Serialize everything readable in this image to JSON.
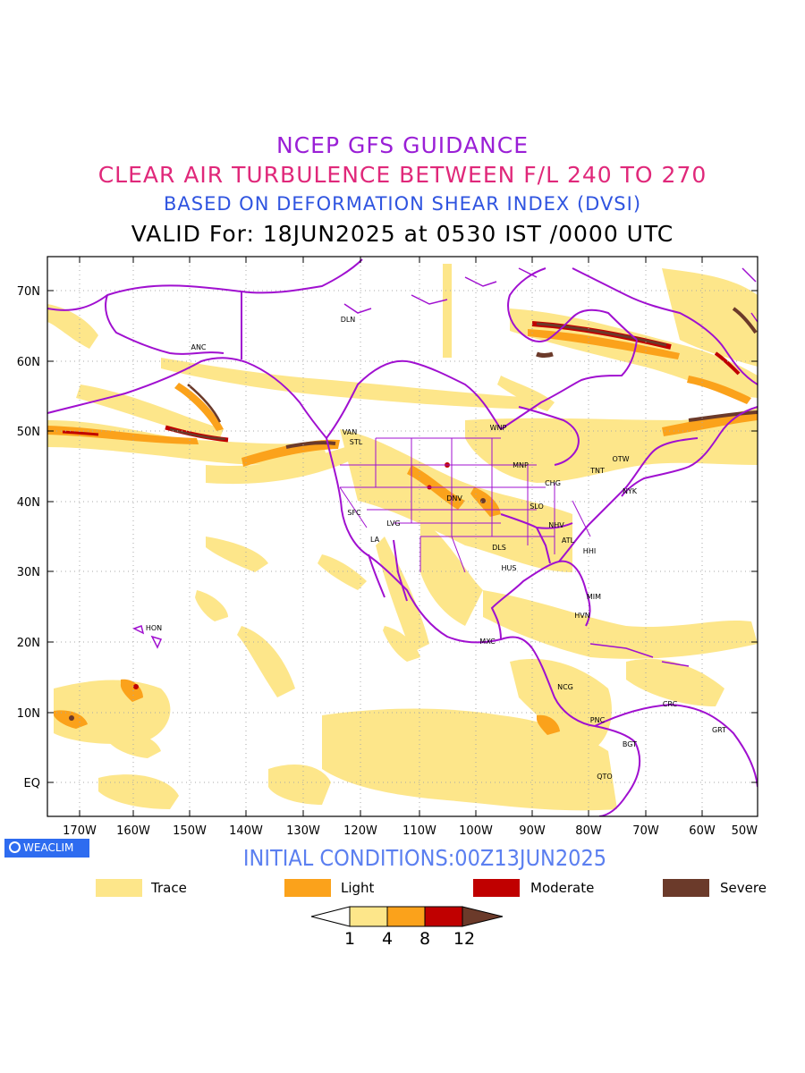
{
  "titles": {
    "line1": "NCEP GFS GUIDANCE",
    "line2": "CLEAR AIR TURBULENCE BETWEEN F/L 240 TO 270",
    "line3": "BASED ON DEFORMATION SHEAR INDEX (DVSI)",
    "line4": "VALID For: 18JUN2025 at 0530 IST /0000 UTC"
  },
  "initial_conditions": "INITIAL CONDITIONS:00Z13JUN2025",
  "badge": "WEACLIM",
  "map": {
    "lat_labels": [
      "70N",
      "60N",
      "50N",
      "40N",
      "30N",
      "20N",
      "10N",
      "EQ"
    ],
    "lon_labels": [
      "170W",
      "160W",
      "150W",
      "140W",
      "130W",
      "120W",
      "110W",
      "100W",
      "90W",
      "80W",
      "70W",
      "60W",
      "50W"
    ],
    "stations": [
      "DLN",
      "ANC",
      "VAN",
      "STL",
      "WNP",
      "MNP",
      "OTW",
      "TNT",
      "CHG",
      "NYK",
      "DNV",
      "SLO",
      "SFC",
      "LVG",
      "LA",
      "NHV",
      "ATL",
      "DLS",
      "HHI",
      "HUS",
      "MIM",
      "HVN",
      "HON",
      "MXC",
      "NCG",
      "PNC",
      "CRC",
      "GRT",
      "BGT",
      "QTO"
    ]
  },
  "legend": {
    "items": [
      {
        "label": "Trace",
        "color": "#fde68a"
      },
      {
        "label": "Light",
        "color": "#fba21b"
      },
      {
        "label": "Moderate",
        "color": "#c00000"
      },
      {
        "label": "Severe",
        "color": "#6b3a2a"
      }
    ]
  },
  "colorbar": {
    "ticks": [
      "1",
      "4",
      "8",
      "12"
    ],
    "colors": [
      "#ffffff",
      "#fde68a",
      "#fba21b",
      "#c00000",
      "#6b3a2a"
    ]
  }
}
